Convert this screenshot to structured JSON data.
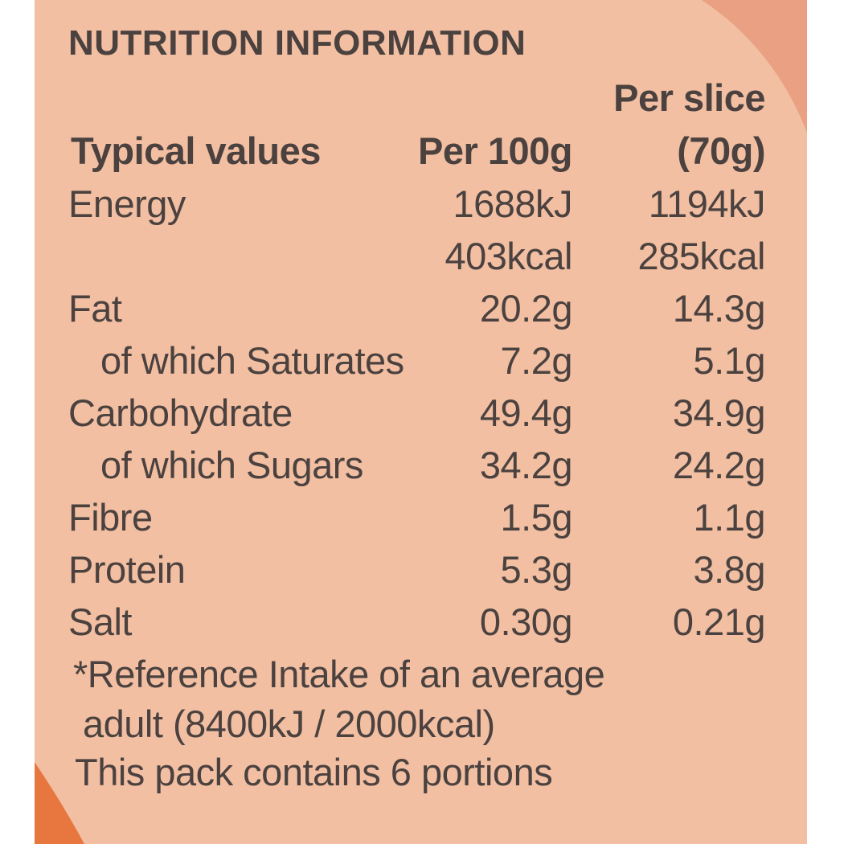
{
  "title": "NUTRITION INFORMATION",
  "header": {
    "label": "Typical values",
    "col1": "Per 100g",
    "col2_line1": "Per slice",
    "col2_line2": "(70g)"
  },
  "rows": [
    {
      "label": "Energy",
      "per100g": "1688kJ",
      "perSlice": "1194kJ"
    },
    {
      "label": "",
      "per100g": "403kcal",
      "perSlice": "285kcal"
    },
    {
      "label": "Fat",
      "per100g": "20.2g",
      "perSlice": "14.3g"
    },
    {
      "label": "of which Saturates",
      "per100g": "7.2g",
      "perSlice": "5.1g"
    },
    {
      "label": "Carbohydrate",
      "per100g": "49.4g",
      "perSlice": "34.9g"
    },
    {
      "label": "of which Sugars",
      "per100g": "34.2g",
      "perSlice": "24.2g"
    },
    {
      "label": "Fibre",
      "per100g": "1.5g",
      "perSlice": "1.1g"
    },
    {
      "label": "Protein",
      "per100g": "5.3g",
      "perSlice": "3.8g"
    },
    {
      "label": "Salt",
      "per100g": "0.30g",
      "perSlice": "0.21g"
    }
  ],
  "footnote": {
    "line1": "*Reference Intake of an average",
    "line2": "adult (8400kJ / 2000kcal)",
    "line3": "This pack contains 6 portions"
  },
  "colors": {
    "background": "#f2bfa2",
    "text": "#4b4240",
    "accent_orange": "#e7773f"
  }
}
